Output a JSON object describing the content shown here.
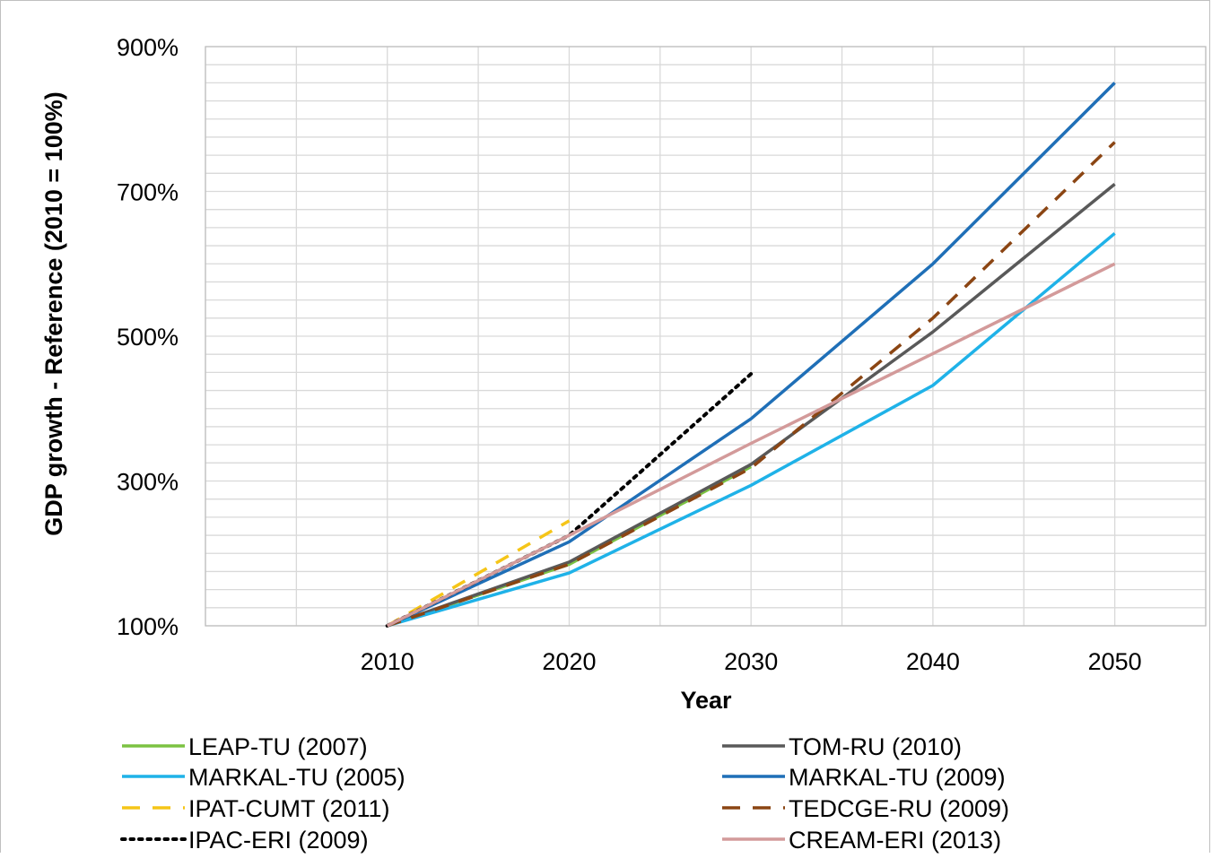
{
  "chart_data": {
    "type": "line",
    "xlabel": "Year",
    "ylabel": "GDP growth - Reference (2010 = 100%)",
    "xlim": [
      2000,
      2055
    ],
    "ylim": [
      100,
      900
    ],
    "x_ticks": [
      "2010",
      "2020",
      "2030",
      "2040",
      "2050"
    ],
    "y_ticks": [
      "100%",
      "300%",
      "500%",
      "700%",
      "900%"
    ],
    "grid": true,
    "legend_position": "bottom",
    "series": [
      {
        "name": "LEAP-TU (2007)",
        "color": "#7cc242",
        "dash": "solid",
        "x": [
          2010,
          2020,
          2030
        ],
        "y": [
          100,
          185,
          320
        ]
      },
      {
        "name": "TOM-RU (2010)",
        "color": "#595959",
        "dash": "solid",
        "x": [
          2010,
          2020,
          2030,
          2040,
          2050
        ],
        "y": [
          100,
          188,
          323,
          506,
          710
        ]
      },
      {
        "name": "MARKAL-TU (2005)",
        "color": "#1fb2e8",
        "dash": "solid",
        "x": [
          2010,
          2020,
          2030,
          2040,
          2050
        ],
        "y": [
          100,
          173,
          294,
          432,
          642
        ]
      },
      {
        "name": "MARKAL-TU (2009)",
        "color": "#1f6fb7",
        "dash": "solid",
        "x": [
          2010,
          2020,
          2030,
          2040,
          2050
        ],
        "y": [
          100,
          216,
          386,
          600,
          850
        ]
      },
      {
        "name": "IPAT-CUMT (2011)",
        "color": "#f5c518",
        "dash": "dashed",
        "x": [
          2010,
          2020
        ],
        "y": [
          100,
          245
        ]
      },
      {
        "name": "TEDCGE-RU (2009)",
        "color": "#8b4513",
        "dash": "dashed",
        "x": [
          2010,
          2020,
          2030,
          2040,
          2050
        ],
        "y": [
          100,
          185,
          318,
          525,
          768
        ]
      },
      {
        "name": "IPAC-ERI (2009)",
        "color": "#000000",
        "dash": "dotted",
        "x": [
          2010,
          2020,
          2030
        ],
        "y": [
          100,
          225,
          448
        ]
      },
      {
        "name": "CREAM-ERI (2013)",
        "color": "#d39a9a",
        "dash": "solid",
        "x": [
          2010,
          2020,
          2030,
          2040,
          2050
        ],
        "y": [
          100,
          225,
          352,
          476,
          600
        ]
      }
    ]
  }
}
